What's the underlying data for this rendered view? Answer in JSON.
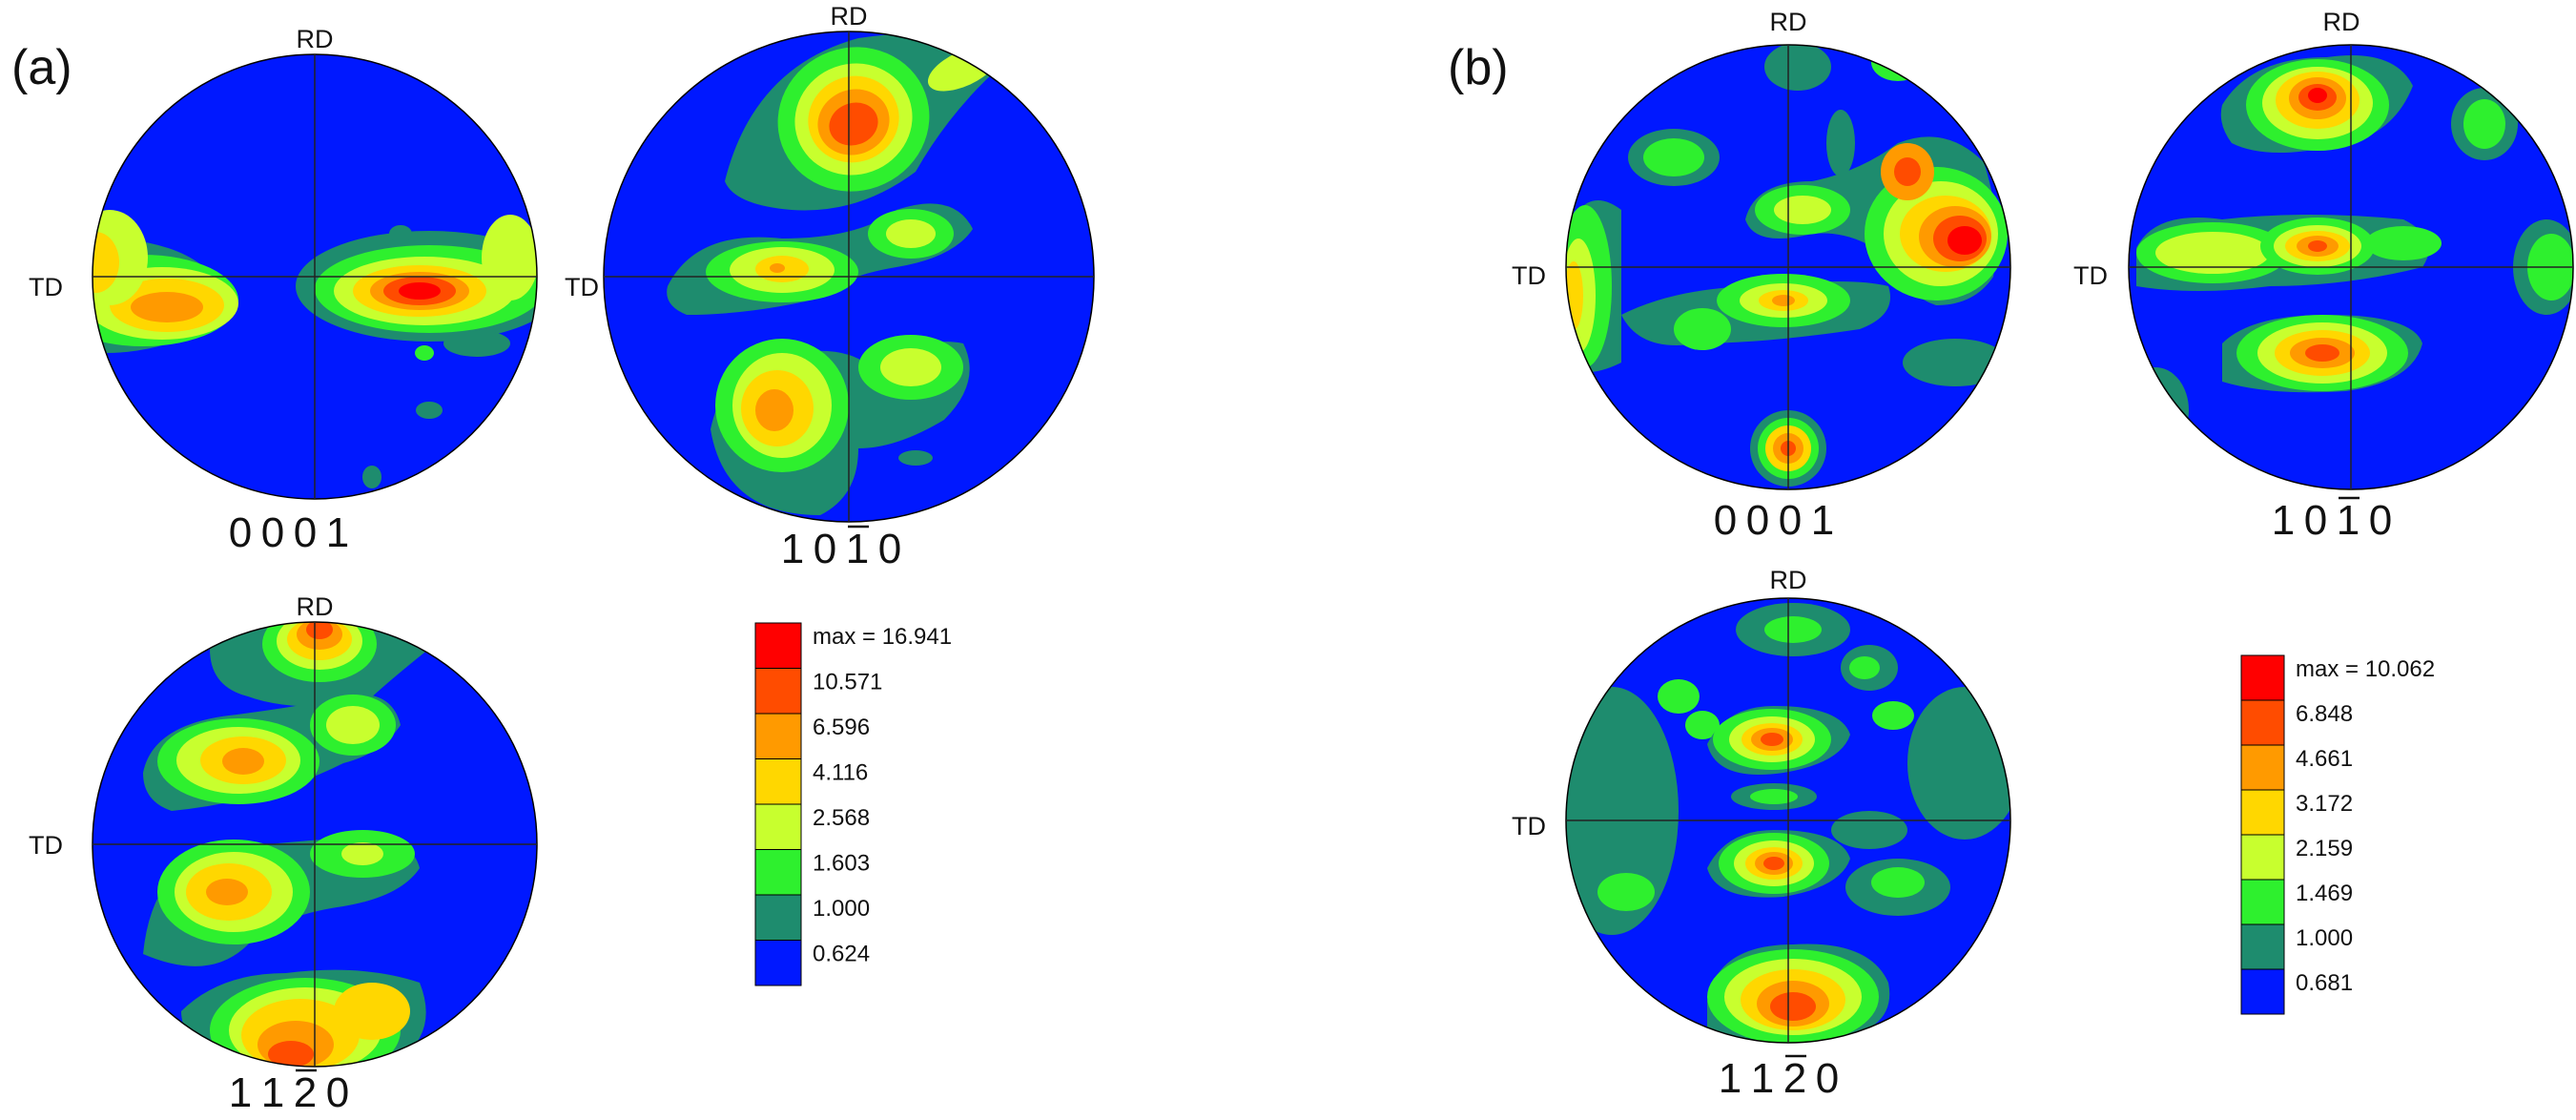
{
  "panels": [
    {
      "label": "(a)",
      "plots": [
        {
          "digits": [
            "0",
            "0",
            "0",
            "1"
          ],
          "bar": [],
          "rd": "RD",
          "td": "TD"
        },
        {
          "digits": [
            "1",
            "0",
            "1",
            "0"
          ],
          "bar": [
            2
          ],
          "rd": "RD",
          "td": "TD"
        },
        {
          "digits": [
            "1",
            "1",
            "2",
            "0"
          ],
          "bar": [
            2
          ],
          "rd": "RD",
          "td": "TD"
        }
      ],
      "legend": [
        "max = 16.941",
        "10.571",
        "6.596",
        "4.116",
        "2.568",
        "1.603",
        "1.000",
        "0.624"
      ]
    },
    {
      "label": "(b)",
      "plots": [
        {
          "digits": [
            "0",
            "0",
            "0",
            "1"
          ],
          "bar": [],
          "rd": "RD",
          "td": "TD"
        },
        {
          "digits": [
            "1",
            "0",
            "1",
            "0"
          ],
          "bar": [
            2
          ],
          "rd": "RD",
          "td": "TD"
        },
        {
          "digits": [
            "1",
            "1",
            "2",
            "0"
          ],
          "bar": [
            2
          ],
          "rd": "RD",
          "td": "TD"
        }
      ],
      "legend": [
        "max = 10.062",
        "6.848",
        "4.661",
        "3.172",
        "2.159",
        "1.469",
        "1.000",
        "0.681"
      ]
    }
  ],
  "colors": {
    "scale": [
      "#ff0000",
      "#ff4c00",
      "#ff9a00",
      "#ffd700",
      "#c8ff2e",
      "#2ef02e",
      "#1e8c6e",
      "#0018ff"
    ],
    "axis_line": "#222222",
    "outline": "#000000"
  }
}
